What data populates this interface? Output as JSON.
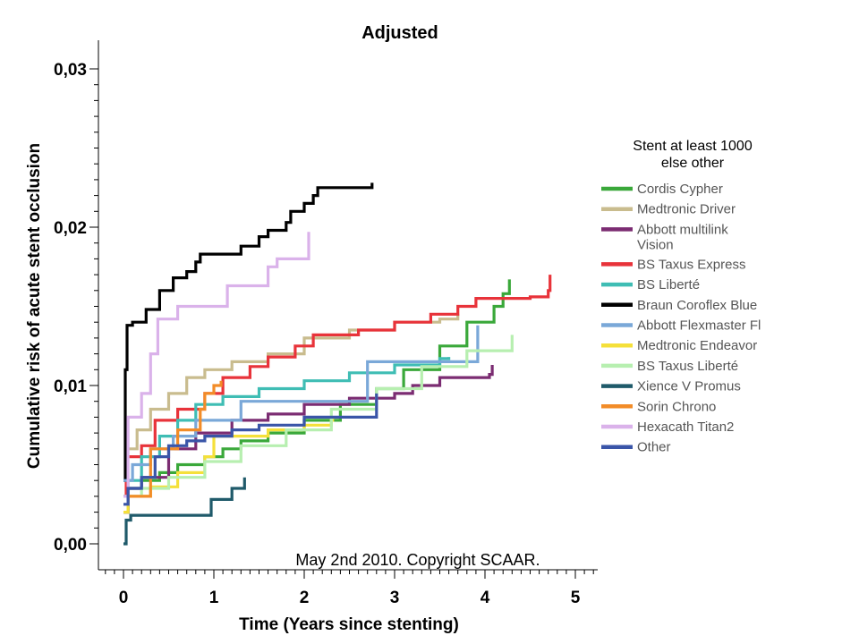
{
  "chart_data": {
    "type": "line",
    "title": "Adjusted",
    "xlabel": "Time (Years since stenting)",
    "ylabel": "Cumulative risk of acute stent occlusion",
    "xlim": [
      -0.3,
      5.3
    ],
    "ylim": [
      0,
      0.03
    ],
    "x_ticks": [
      0,
      1,
      2,
      3,
      4,
      5
    ],
    "x_tick_labels": [
      "0",
      "1",
      "2",
      "3",
      "4",
      "5"
    ],
    "y_ticks": [
      0,
      0.01,
      0.02,
      0.03
    ],
    "y_tick_labels": [
      "0,00",
      "0,01",
      "0,02",
      "0,03"
    ],
    "annotation": "May 2nd 2010. Copyright SCAAR.",
    "legend_title_line1": "Stent at least 1000",
    "legend_title_line2": "else other",
    "legend_position": "right",
    "series": [
      {
        "name": "Cordis Cypher",
        "color": "#3aa83a",
        "points": [
          [
            0,
            0.002
          ],
          [
            0.05,
            0.0035
          ],
          [
            0.2,
            0.004
          ],
          [
            0.4,
            0.0045
          ],
          [
            0.6,
            0.005
          ],
          [
            0.9,
            0.0055
          ],
          [
            1.1,
            0.006
          ],
          [
            1.3,
            0.0065
          ],
          [
            1.6,
            0.007
          ],
          [
            2.0,
            0.0078
          ],
          [
            2.4,
            0.0088
          ],
          [
            2.8,
            0.0098
          ],
          [
            3.1,
            0.011
          ],
          [
            3.5,
            0.0125
          ],
          [
            3.8,
            0.014
          ],
          [
            4.1,
            0.015
          ],
          [
            4.2,
            0.0158
          ],
          [
            4.27,
            0.0167
          ]
        ]
      },
      {
        "name": "Medtronic Driver",
        "color": "#c9bc8e",
        "points": [
          [
            0,
            0.004
          ],
          [
            0.03,
            0.006
          ],
          [
            0.15,
            0.0072
          ],
          [
            0.3,
            0.0085
          ],
          [
            0.5,
            0.0095
          ],
          [
            0.7,
            0.0105
          ],
          [
            0.9,
            0.011
          ],
          [
            1.2,
            0.0115
          ],
          [
            1.6,
            0.012
          ],
          [
            2.0,
            0.013
          ],
          [
            2.5,
            0.0135
          ],
          [
            3.0,
            0.014
          ],
          [
            3.5,
            0.0142
          ],
          [
            3.7,
            0.0145
          ]
        ]
      },
      {
        "name": "Abbott multilink Vision",
        "color": "#7b2c72",
        "points": [
          [
            0,
            0.002
          ],
          [
            0.05,
            0.0035
          ],
          [
            0.2,
            0.0042
          ],
          [
            0.5,
            0.006
          ],
          [
            0.8,
            0.007
          ],
          [
            1.2,
            0.0078
          ],
          [
            1.6,
            0.0082
          ],
          [
            2.0,
            0.0088
          ],
          [
            2.5,
            0.0092
          ],
          [
            3.0,
            0.0095
          ],
          [
            3.2,
            0.01
          ],
          [
            3.5,
            0.0105
          ],
          [
            4.05,
            0.0107
          ],
          [
            4.08,
            0.0113
          ]
        ]
      },
      {
        "name": "BS Taxus Express",
        "color": "#e8333a",
        "points": [
          [
            0,
            0.003
          ],
          [
            0.03,
            0.0055
          ],
          [
            0.2,
            0.0062
          ],
          [
            0.35,
            0.0078
          ],
          [
            0.6,
            0.0085
          ],
          [
            0.9,
            0.0095
          ],
          [
            1.1,
            0.0105
          ],
          [
            1.4,
            0.0112
          ],
          [
            1.6,
            0.0118
          ],
          [
            1.9,
            0.0125
          ],
          [
            2.1,
            0.0132
          ],
          [
            2.6,
            0.0135
          ],
          [
            3.0,
            0.014
          ],
          [
            3.4,
            0.0145
          ],
          [
            3.7,
            0.015
          ],
          [
            3.9,
            0.0155
          ],
          [
            4.5,
            0.0156
          ],
          [
            4.7,
            0.016
          ],
          [
            4.72,
            0.017
          ]
        ]
      },
      {
        "name": "BS Liberté",
        "color": "#3fbdb4",
        "points": [
          [
            0,
            0.003
          ],
          [
            0.05,
            0.004
          ],
          [
            0.2,
            0.0055
          ],
          [
            0.4,
            0.0068
          ],
          [
            0.6,
            0.0078
          ],
          [
            0.8,
            0.0088
          ],
          [
            1.1,
            0.0093
          ],
          [
            1.5,
            0.0098
          ],
          [
            2.0,
            0.0103
          ],
          [
            2.5,
            0.0108
          ],
          [
            3.0,
            0.0113
          ],
          [
            3.5,
            0.0117
          ],
          [
            3.6,
            0.0118
          ]
        ]
      },
      {
        "name": "Braun Coroflex Blue",
        "color": "#000000",
        "points": [
          [
            0,
            0.004
          ],
          [
            0.02,
            0.011
          ],
          [
            0.04,
            0.0138
          ],
          [
            0.1,
            0.014
          ],
          [
            0.25,
            0.0148
          ],
          [
            0.4,
            0.016
          ],
          [
            0.55,
            0.0168
          ],
          [
            0.7,
            0.0172
          ],
          [
            0.8,
            0.0178
          ],
          [
            0.85,
            0.0183
          ],
          [
            1.15,
            0.0183
          ],
          [
            1.3,
            0.0188
          ],
          [
            1.5,
            0.0194
          ],
          [
            1.6,
            0.0198
          ],
          [
            1.8,
            0.0203
          ],
          [
            1.85,
            0.021
          ],
          [
            2.0,
            0.0215
          ],
          [
            2.1,
            0.022
          ],
          [
            2.15,
            0.0225
          ],
          [
            2.75,
            0.0228
          ]
        ]
      },
      {
        "name": "Abbott Flexmaster Fl",
        "color": "#7aa8d8",
        "points": [
          [
            0,
            0.004
          ],
          [
            0.1,
            0.005
          ],
          [
            0.3,
            0.006
          ],
          [
            0.55,
            0.0068
          ],
          [
            0.8,
            0.0078
          ],
          [
            1.3,
            0.009
          ],
          [
            2.0,
            0.009
          ],
          [
            2.6,
            0.009
          ],
          [
            2.7,
            0.0115
          ],
          [
            3.9,
            0.0115
          ],
          [
            3.92,
            0.0138
          ]
        ]
      },
      {
        "name": "Medtronic Endeavor",
        "color": "#f5e03a",
        "points": [
          [
            0,
            0.002
          ],
          [
            0.05,
            0.003
          ],
          [
            0.3,
            0.0036
          ],
          [
            0.6,
            0.0045
          ],
          [
            0.9,
            0.0055
          ],
          [
            1.0,
            0.0068
          ],
          [
            1.3,
            0.0068
          ],
          [
            1.6,
            0.0072
          ],
          [
            2.0,
            0.0075
          ],
          [
            2.3,
            0.0078
          ],
          [
            2.33,
            0.0078
          ]
        ]
      },
      {
        "name": "BS Taxus Liberté",
        "color": "#b7efb0",
        "points": [
          [
            0,
            0.003
          ],
          [
            0.2,
            0.0035
          ],
          [
            0.5,
            0.0042
          ],
          [
            0.9,
            0.0052
          ],
          [
            1.3,
            0.0062
          ],
          [
            1.8,
            0.0072
          ],
          [
            2.3,
            0.0085
          ],
          [
            2.8,
            0.0098
          ],
          [
            3.3,
            0.0112
          ],
          [
            3.8,
            0.0122
          ],
          [
            4.3,
            0.0132
          ]
        ]
      },
      {
        "name": "Xience V Promus",
        "color": "#1f5a6a",
        "points": [
          [
            0,
            0
          ],
          [
            0.03,
            0.0015
          ],
          [
            0.08,
            0.0018
          ],
          [
            0.95,
            0.0018
          ],
          [
            0.97,
            0.0028
          ],
          [
            1.2,
            0.0035
          ],
          [
            1.34,
            0.0042
          ]
        ]
      },
      {
        "name": "Sorin Chrono",
        "color": "#f28c28",
        "points": [
          [
            0,
            0.003
          ],
          [
            0.3,
            0.006
          ],
          [
            0.6,
            0.0072
          ],
          [
            0.85,
            0.0085
          ],
          [
            0.9,
            0.0095
          ],
          [
            1.0,
            0.01
          ],
          [
            1.08,
            0.0103
          ]
        ]
      },
      {
        "name": "Hexacath Titan2",
        "color": "#dab2ea",
        "points": [
          [
            0,
            0.003
          ],
          [
            0.05,
            0.008
          ],
          [
            0.2,
            0.0095
          ],
          [
            0.3,
            0.012
          ],
          [
            0.38,
            0.0142
          ],
          [
            0.6,
            0.015
          ],
          [
            0.9,
            0.015
          ],
          [
            1.15,
            0.0163
          ],
          [
            1.6,
            0.0175
          ],
          [
            1.7,
            0.018
          ],
          [
            2.0,
            0.018
          ],
          [
            2.05,
            0.0197
          ]
        ]
      },
      {
        "name": "Other",
        "color": "#3a55a8",
        "points": [
          [
            0,
            0.0025
          ],
          [
            0.05,
            0.0035
          ],
          [
            0.2,
            0.0042
          ],
          [
            0.35,
            0.0055
          ],
          [
            0.5,
            0.0062
          ],
          [
            0.7,
            0.0065
          ],
          [
            0.9,
            0.0068
          ],
          [
            1.2,
            0.0072
          ],
          [
            1.5,
            0.0075
          ],
          [
            2.0,
            0.008
          ],
          [
            2.4,
            0.008
          ],
          [
            2.8,
            0.0085
          ],
          [
            2.8,
            0.0095
          ]
        ]
      }
    ]
  }
}
